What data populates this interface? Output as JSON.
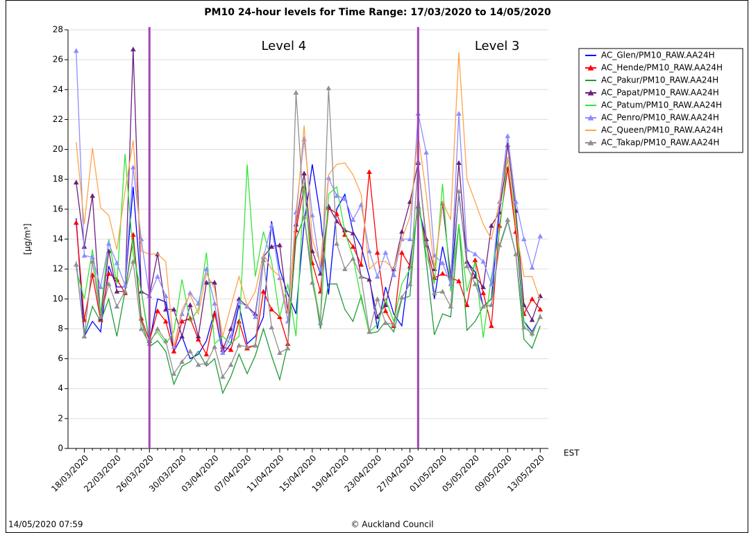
{
  "chart_data": {
    "type": "line",
    "title": "PM10 24-hour levels for Time Range: 17/03/2020 to 14/05/2020",
    "y_label": "[µg/m³]",
    "x_unit": "EST",
    "footer_left": "14/05/2020 07:59",
    "footer_center": "© Auckland Council",
    "ylim": [
      0,
      28
    ],
    "yticks": [
      0,
      2,
      4,
      6,
      8,
      10,
      12,
      14,
      16,
      18,
      20,
      22,
      24,
      26,
      28
    ],
    "grid": true,
    "legend": "top-right",
    "annotations": [
      {
        "text": "Level 4",
        "x": 9
      },
      {
        "text": "Level 3",
        "x": 42
      }
    ],
    "annotation_color": "#a344b8",
    "categories": [
      null,
      "18/03/2020",
      null,
      null,
      null,
      "22/03/2020",
      null,
      null,
      null,
      "26/03/2020",
      null,
      null,
      null,
      "30/03/2020",
      null,
      null,
      null,
      "03/04/2020",
      null,
      null,
      null,
      "07/04/2020",
      null,
      null,
      null,
      "11/04/2020",
      null,
      null,
      null,
      "15/04/2020",
      null,
      null,
      null,
      "19/04/2020",
      null,
      null,
      null,
      "23/04/2020",
      null,
      null,
      null,
      "27/04/2020",
      null,
      null,
      null,
      "01/05/2020",
      null,
      null,
      null,
      "05/05/2020",
      null,
      null,
      null,
      "09/05/2020",
      null,
      null,
      null,
      "13/05/2020"
    ],
    "series": [
      {
        "name": "AC_Glen/PM10_RAW.AA24H",
        "color": "#0000ff",
        "marker": "none",
        "values": [
          15.4,
          7.5,
          8.5,
          7.8,
          12.2,
          10.8,
          10.8,
          17.5,
          10.5,
          7.1,
          10.0,
          9.8,
          6.5,
          7.5,
          6.0,
          6.3,
          7.2,
          9.2,
          6.3,
          7.0,
          9.6,
          7.0,
          7.5,
          8.8,
          15.2,
          12.0,
          10.3,
          9.0,
          15.0,
          19.0,
          15.5,
          10.3,
          16.0,
          17.0,
          14.5,
          13.5,
          11.5,
          8.0,
          10.8,
          9.0,
          8.2,
          12.5,
          16.2,
          14.0,
          10.0,
          13.5,
          11.0,
          17.0,
          12.5,
          11.8,
          9.5,
          10.0,
          16.0,
          19.5,
          14.5,
          8.5,
          7.8,
          8.8
        ]
      },
      {
        "name": "AC_Hende/PM10_RAW.AA24H",
        "color": "#ff0000",
        "marker": "triangle",
        "values": [
          15.1,
          8.6,
          11.6,
          8.6,
          11.7,
          11.3,
          10.4,
          14.3,
          8.7,
          7.2,
          9.2,
          8.5,
          6.5,
          8.5,
          8.7,
          7.3,
          6.3,
          9.0,
          6.8,
          6.6,
          8.5,
          6.7,
          6.9,
          10.5,
          9.3,
          8.8,
          7.0,
          14.6,
          17.5,
          12.4,
          10.5,
          16.1,
          15.7,
          14.3,
          13.5,
          12.3,
          18.5,
          13.1,
          9.2,
          8.2,
          13.1,
          12.2,
          16.2,
          13.6,
          11.4,
          11.7,
          11.4,
          11.2,
          9.6,
          12.6,
          10.4,
          8.2,
          14.9,
          18.7,
          14.5,
          9.0,
          10.0,
          9.3
        ]
      },
      {
        "name": "AC_Pakur/PM10_RAW.AA24H",
        "color": "#1f9a3a",
        "marker": "none",
        "values": [
          12.5,
          7.5,
          9.5,
          8.5,
          10.0,
          7.5,
          10.5,
          14.0,
          8.5,
          6.8,
          7.2,
          6.5,
          4.3,
          5.5,
          5.8,
          6.5,
          5.5,
          6.0,
          3.7,
          4.8,
          6.3,
          5.0,
          6.2,
          8.0,
          6.2,
          4.6,
          7.0,
          14.0,
          15.5,
          11.5,
          8.0,
          11.0,
          11.0,
          9.3,
          8.5,
          10.2,
          7.7,
          7.8,
          8.5,
          7.8,
          10.0,
          10.2,
          17.0,
          12.5,
          7.6,
          9.0,
          8.8,
          15.0,
          7.9,
          8.5,
          9.5,
          10.0,
          13.5,
          15.2,
          13.0,
          7.3,
          6.7,
          8.2
        ]
      },
      {
        "name": "AC_Papat/PM10_RAW.AA24H",
        "color": "#6b1f7e",
        "marker": "triangle",
        "values": [
          17.8,
          13.5,
          16.9,
          8.7,
          13.2,
          10.5,
          10.5,
          26.7,
          10.5,
          10.2,
          13.0,
          9.3,
          9.3,
          7.5,
          9.6,
          7.5,
          11.1,
          11.1,
          6.6,
          8.0,
          10.0,
          9.5,
          9.0,
          12.8,
          13.5,
          13.6,
          9.2,
          15.0,
          18.4,
          13.2,
          11.7,
          16.2,
          15.2,
          14.6,
          14.4,
          11.5,
          11.3,
          8.8,
          9.6,
          12.0,
          14.5,
          16.5,
          19.1,
          14.0,
          12.0,
          16.4,
          11.5,
          19.1,
          12.5,
          11.5,
          10.8,
          14.9,
          15.8,
          20.3,
          15.9,
          9.6,
          8.6,
          10.2
        ]
      },
      {
        "name": "AC_Patum/PM10_RAW.AA24H",
        "color": "#33e633",
        "marker": "none",
        "values": [
          12.0,
          10.0,
          13.3,
          9.0,
          14.0,
          11.0,
          19.7,
          13.0,
          10.5,
          7.2,
          7.8,
          7.0,
          7.8,
          11.3,
          8.5,
          9.3,
          13.1,
          7.0,
          7.5,
          7.0,
          7.5,
          19.0,
          11.5,
          14.5,
          12.5,
          8.8,
          11.0,
          7.5,
          17.8,
          11.5,
          8.5,
          17.0,
          17.5,
          14.5,
          12.8,
          10.0,
          7.8,
          8.3,
          10.0,
          8.5,
          11.0,
          12.0,
          16.5,
          13.0,
          11.0,
          17.7,
          10.5,
          15.0,
          10.5,
          12.5,
          7.4,
          11.5,
          14.5,
          19.5,
          15.3,
          8.5,
          7.5,
          9.0
        ]
      },
      {
        "name": "AC_Penro/PM10_RAW.AA24H",
        "color": "#8c8cff",
        "marker": "triangle",
        "values": [
          26.6,
          12.9,
          12.8,
          10.8,
          13.7,
          12.4,
          10.9,
          18.8,
          14.0,
          10.2,
          11.5,
          10.2,
          6.8,
          9.0,
          10.4,
          9.7,
          12.0,
          9.7,
          6.4,
          7.5,
          9.8,
          9.5,
          8.8,
          12.8,
          14.9,
          11.4,
          8.5,
          15.8,
          20.7,
          15.6,
          12.0,
          18.1,
          16.9,
          16.7,
          15.3,
          16.3,
          13.2,
          11.5,
          13.1,
          11.6,
          14.0,
          14.0,
          22.4,
          19.8,
          12.9,
          12.4,
          11.0,
          22.4,
          13.3,
          13.0,
          12.5,
          11.0,
          16.5,
          20.9,
          16.5,
          14.0,
          12.1,
          14.2
        ]
      },
      {
        "name": "AC_Queen/PM10_RAW.AA24H",
        "color": "#ffa347",
        "marker": "none",
        "values": [
          20.5,
          15.0,
          20.1,
          16.1,
          15.6,
          13.3,
          17.2,
          20.6,
          13.2,
          13.0,
          13.0,
          12.5,
          6.8,
          9.3,
          10.3,
          9.0,
          11.7,
          10.7,
          7.5,
          9.5,
          11.5,
          9.5,
          10.5,
          13.0,
          12.0,
          11.5,
          9.0,
          15.2,
          21.6,
          14.0,
          12.3,
          18.3,
          19.0,
          19.1,
          18.3,
          17.0,
          12.0,
          12.5,
          12.5,
          12.0,
          14.0,
          15.5,
          21.0,
          17.0,
          12.0,
          16.5,
          15.3,
          26.5,
          18.0,
          16.5,
          15.0,
          14.0,
          16.5,
          19.5,
          14.8,
          11.5,
          11.5,
          9.9
        ]
      },
      {
        "name": "AC_Takap/PM10_RAW.AA24H",
        "color": "#909090",
        "marker": "triangle",
        "values": [
          12.3,
          7.5,
          12.5,
          8.8,
          11.0,
          9.5,
          10.5,
          12.5,
          8.0,
          7.0,
          8.0,
          7.2,
          5.0,
          5.8,
          6.5,
          5.6,
          5.7,
          6.8,
          4.8,
          5.6,
          6.9,
          6.8,
          6.9,
          12.6,
          8.1,
          6.4,
          6.7,
          23.8,
          15.5,
          11.1,
          8.4,
          24.1,
          13.7,
          12.0,
          12.7,
          11.5,
          7.8,
          10.0,
          8.4,
          8.3,
          10.1,
          11.0,
          19.2,
          13.7,
          10.4,
          10.5,
          9.5,
          17.2,
          12.2,
          11.0,
          9.5,
          9.6,
          13.6,
          15.3,
          13.0,
          8.1,
          7.7,
          8.8
        ]
      }
    ]
  }
}
